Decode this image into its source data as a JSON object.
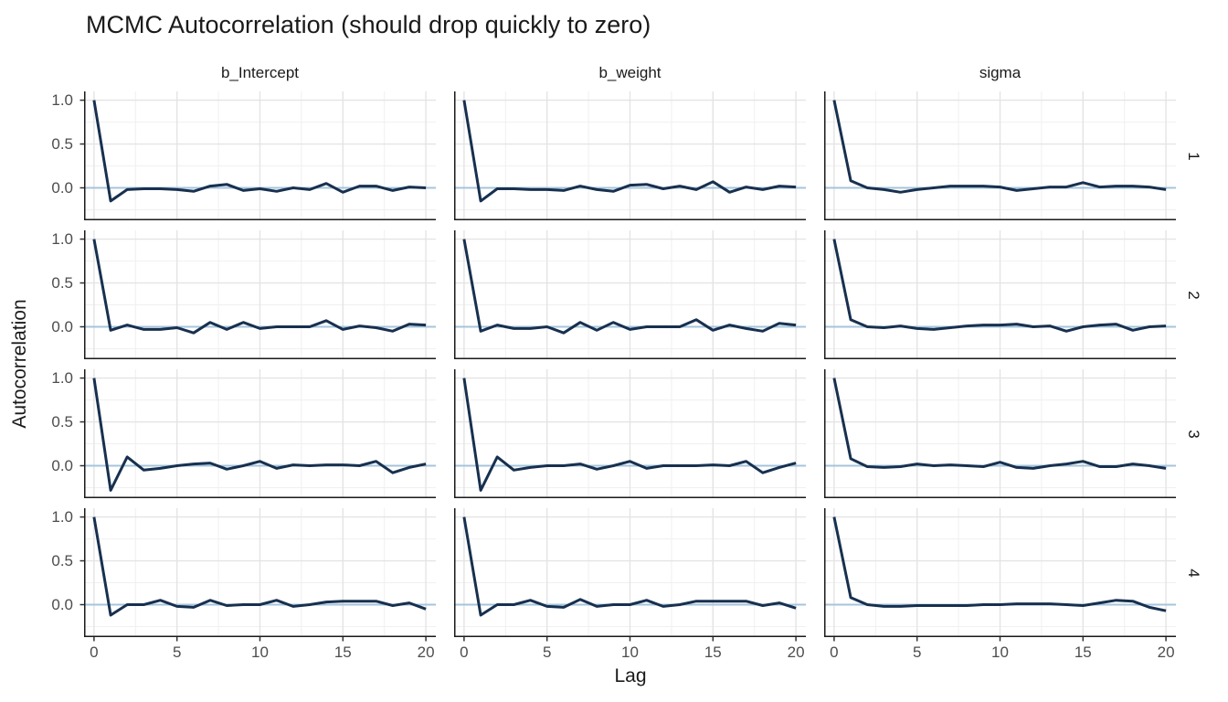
{
  "title": "MCMC Autocorrelation (should drop quickly to zero)",
  "axes": {
    "x_label": "Lag",
    "y_label": "Autocorrelation",
    "x_tick_labels": [
      "0",
      "5",
      "10",
      "15",
      "20"
    ],
    "x_tick_values": [
      0,
      5,
      10,
      15,
      20
    ],
    "y_tick_labels": [
      "1.0",
      "0.5",
      "0.0"
    ],
    "y_tick_values": [
      1.0,
      0.5,
      0.0
    ]
  },
  "facets": {
    "columns": [
      "b_Intercept",
      "b_weight",
      "sigma"
    ],
    "rows": [
      "1",
      "2",
      "3",
      "4"
    ]
  },
  "colors": {
    "line": "#17304f",
    "zero_line": "#a6c4dc",
    "grid_major": "#e4e4e4",
    "grid_minor": "#f0f0f0",
    "axis_line": "#1a1a1a",
    "tick_text": "#4d4d4d"
  },
  "chart_data": {
    "type": "line",
    "title": "MCMC Autocorrelation (should drop quickly to zero)",
    "xlabel": "Lag",
    "ylabel": "Autocorrelation",
    "facet_columns": [
      "b_Intercept",
      "b_weight",
      "sigma"
    ],
    "facet_rows": [
      "1",
      "2",
      "3",
      "4"
    ],
    "xlim": [
      -0.6,
      20.6
    ],
    "ylim": [
      -0.37,
      1.1
    ],
    "grid": true,
    "x": [
      0,
      1,
      2,
      3,
      4,
      5,
      6,
      7,
      8,
      9,
      10,
      11,
      12,
      13,
      14,
      15,
      16,
      17,
      18,
      19,
      20
    ],
    "series": [
      {
        "name": "chain 1 / b_Intercept",
        "chain": "1",
        "parameter": "b_Intercept",
        "values": [
          1.0,
          -0.15,
          -0.02,
          -0.01,
          -0.01,
          -0.02,
          -0.04,
          0.02,
          0.04,
          -0.03,
          -0.01,
          -0.04,
          0.0,
          -0.02,
          0.05,
          -0.05,
          0.02,
          0.02,
          -0.03,
          0.01,
          0.0
        ]
      },
      {
        "name": "chain 1 / b_weight",
        "chain": "1",
        "parameter": "b_weight",
        "values": [
          1.0,
          -0.15,
          -0.01,
          -0.01,
          -0.02,
          -0.02,
          -0.03,
          0.02,
          -0.02,
          -0.04,
          0.03,
          0.04,
          -0.01,
          0.02,
          -0.02,
          0.07,
          -0.05,
          0.01,
          -0.02,
          0.02,
          0.01
        ]
      },
      {
        "name": "chain 1 / sigma",
        "chain": "1",
        "parameter": "sigma",
        "values": [
          1.0,
          0.08,
          0.0,
          -0.02,
          -0.05,
          -0.02,
          0.0,
          0.02,
          0.02,
          0.02,
          0.01,
          -0.03,
          -0.01,
          0.01,
          0.01,
          0.06,
          0.01,
          0.02,
          0.02,
          0.01,
          -0.02
        ]
      },
      {
        "name": "chain 2 / b_Intercept",
        "chain": "2",
        "parameter": "b_Intercept",
        "values": [
          1.0,
          -0.04,
          0.02,
          -0.03,
          -0.03,
          -0.01,
          -0.07,
          0.05,
          -0.03,
          0.05,
          -0.02,
          0.0,
          0.0,
          0.0,
          0.07,
          -0.03,
          0.01,
          -0.01,
          -0.05,
          0.03,
          0.02
        ]
      },
      {
        "name": "chain 2 / b_weight",
        "chain": "2",
        "parameter": "b_weight",
        "values": [
          1.0,
          -0.05,
          0.02,
          -0.02,
          -0.02,
          0.0,
          -0.07,
          0.05,
          -0.04,
          0.05,
          -0.03,
          0.0,
          0.0,
          0.0,
          0.08,
          -0.04,
          0.02,
          -0.02,
          -0.05,
          0.04,
          0.02
        ]
      },
      {
        "name": "chain 2 / sigma",
        "chain": "2",
        "parameter": "sigma",
        "values": [
          1.0,
          0.08,
          0.0,
          -0.01,
          0.01,
          -0.02,
          -0.03,
          -0.01,
          0.01,
          0.02,
          0.02,
          0.03,
          0.0,
          0.01,
          -0.05,
          0.0,
          0.02,
          0.03,
          -0.04,
          0.0,
          0.01
        ]
      },
      {
        "name": "chain 3 / b_Intercept",
        "chain": "3",
        "parameter": "b_Intercept",
        "values": [
          1.0,
          -0.28,
          0.1,
          -0.05,
          -0.03,
          0.0,
          0.02,
          0.03,
          -0.04,
          0.0,
          0.05,
          -0.03,
          0.01,
          0.0,
          0.01,
          0.01,
          0.0,
          0.05,
          -0.08,
          -0.02,
          0.02
        ]
      },
      {
        "name": "chain 3 / b_weight",
        "chain": "3",
        "parameter": "b_weight",
        "values": [
          1.0,
          -0.28,
          0.1,
          -0.05,
          -0.02,
          0.0,
          0.0,
          0.02,
          -0.04,
          0.0,
          0.05,
          -0.03,
          0.0,
          0.0,
          0.0,
          0.01,
          0.0,
          0.05,
          -0.08,
          -0.02,
          0.03
        ]
      },
      {
        "name": "chain 3 / sigma",
        "chain": "3",
        "parameter": "sigma",
        "values": [
          1.0,
          0.08,
          -0.01,
          -0.02,
          -0.01,
          0.02,
          0.0,
          0.01,
          0.0,
          -0.01,
          0.04,
          -0.02,
          -0.03,
          0.0,
          0.02,
          0.05,
          -0.01,
          -0.01,
          0.02,
          0.0,
          -0.03
        ]
      },
      {
        "name": "chain 4 / b_Intercept",
        "chain": "4",
        "parameter": "b_Intercept",
        "values": [
          1.0,
          -0.12,
          0.0,
          0.0,
          0.05,
          -0.02,
          -0.03,
          0.05,
          -0.01,
          0.0,
          0.0,
          0.05,
          -0.02,
          0.0,
          0.03,
          0.04,
          0.04,
          0.04,
          -0.01,
          0.02,
          -0.05
        ]
      },
      {
        "name": "chain 4 / b_weight",
        "chain": "4",
        "parameter": "b_weight",
        "values": [
          1.0,
          -0.12,
          0.0,
          0.0,
          0.05,
          -0.02,
          -0.03,
          0.06,
          -0.02,
          0.0,
          0.0,
          0.05,
          -0.02,
          0.0,
          0.04,
          0.04,
          0.04,
          0.04,
          -0.01,
          0.02,
          -0.04
        ]
      },
      {
        "name": "chain 4 / sigma",
        "chain": "4",
        "parameter": "sigma",
        "values": [
          1.0,
          0.08,
          0.0,
          -0.02,
          -0.02,
          -0.01,
          -0.01,
          -0.01,
          -0.01,
          0.0,
          0.0,
          0.01,
          0.01,
          0.01,
          0.0,
          -0.01,
          0.02,
          0.05,
          0.04,
          -0.03,
          -0.07
        ]
      }
    ]
  }
}
